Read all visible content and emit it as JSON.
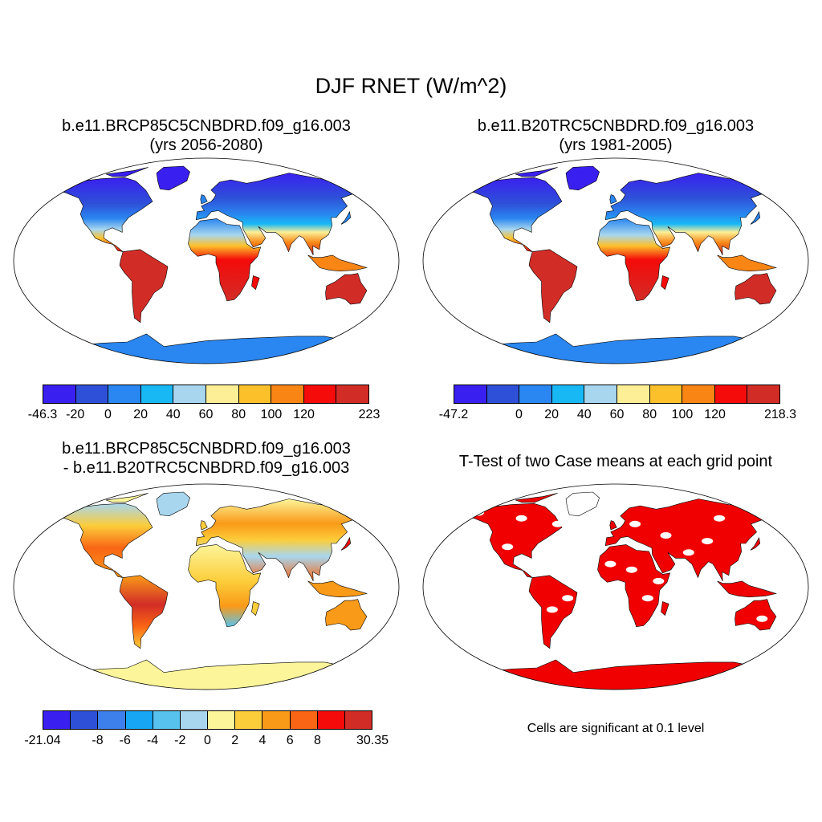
{
  "title": "DJF RNET (W/m^2)",
  "panels": [
    {
      "id": "p1",
      "title_line1": "b.e11.BRCP85C5CNBDRD.f09_g16.003",
      "title_line2": "(yrs 2056-2080)",
      "colorbar": {
        "colors": [
          "#3a20f0",
          "#2e50d8",
          "#2a86f0",
          "#18b8f5",
          "#a8d6ee",
          "#fcef96",
          "#fcc12a",
          "#f98515",
          "#f40b0a",
          "#d22c27"
        ],
        "labels": [
          "-46.3",
          "-20",
          "0",
          "20",
          "40",
          "60",
          "80",
          "100",
          "120",
          "223"
        ]
      }
    },
    {
      "id": "p2",
      "title_line1": "b.e11.B20TRC5CNBDRD.f09_g16.003",
      "title_line2": "(yrs 1981-2005)",
      "colorbar": {
        "colors": [
          "#3a20f0",
          "#2e50d8",
          "#2a86f0",
          "#18b8f5",
          "#a8d6ee",
          "#fcef96",
          "#fcc12a",
          "#f98515",
          "#f40b0a",
          "#d22c27"
        ],
        "labels": [
          "-47.2",
          "0",
          "20",
          "40",
          "60",
          "80",
          "100",
          "120",
          "218.3"
        ]
      }
    },
    {
      "id": "p3",
      "title_line1": "b.e11.BRCP85C5CNBDRD.f09_g16.003",
      "title_line2": "- b.e11.B20TRC5CNBDRD.f09_g16.003",
      "colorbar": {
        "colors": [
          "#3a20f0",
          "#2e50d8",
          "#3d80ec",
          "#16a6f4",
          "#58c2ee",
          "#a8d6ee",
          "#fcf59a",
          "#fccd3a",
          "#f99a18",
          "#f96514",
          "#f40b0a",
          "#d22c27"
        ],
        "labels": [
          "-21.04",
          "-8",
          "-6",
          "-4",
          "-2",
          "0",
          "2",
          "4",
          "6",
          "8",
          "30.35"
        ]
      }
    },
    {
      "id": "p4",
      "title_line1": "T-Test of two Case means at each grid point",
      "note": "Cells are significant at 0.1 level",
      "significant_color": "#f00000"
    }
  ]
}
